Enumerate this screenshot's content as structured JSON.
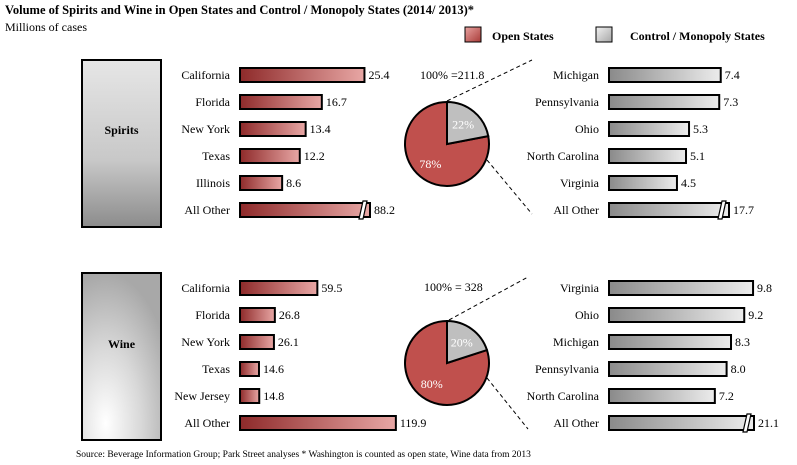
{
  "title": "Volume of Spirits and Wine in Open States and Control / Monopoly States (2014/ 2013)*",
  "subtitle": "Millions of cases",
  "source": "Source: Beverage Information Group; Park Street analyses * Washington is counted as open state, Wine data from 2013",
  "legend": [
    {
      "label": "Open States",
      "color": "#c0504d"
    },
    {
      "label": "Control / Monopoly States",
      "color": "#bfbfbf"
    }
  ],
  "colors": {
    "open": "#c0504d",
    "control": "#bfbfbf"
  },
  "chart_data": [
    {
      "type": "bar",
      "panel": "Spirits",
      "series": "Open States",
      "categories": [
        "California",
        "Florida",
        "New York",
        "Texas",
        "Illinois",
        "All Other"
      ],
      "values": [
        25.4,
        16.7,
        13.4,
        12.2,
        8.6,
        88.2
      ],
      "labels": [
        "25.4",
        "16.7",
        "13.4",
        "12.2",
        "8.6",
        "88.2"
      ],
      "axis_break_on": "All Other"
    },
    {
      "type": "pie",
      "panel": "Spirits",
      "total_label": "100% =211.8",
      "slices": [
        {
          "name": "Open States",
          "value": 78,
          "label": "78%"
        },
        {
          "name": "Control / Monopoly States",
          "value": 22,
          "label": "22%"
        }
      ]
    },
    {
      "type": "bar",
      "panel": "Spirits",
      "series": "Control / Monopoly States",
      "categories": [
        "Michigan",
        "Pennsylvania",
        "Ohio",
        "North Carolina",
        "Virginia",
        "All Other"
      ],
      "values": [
        7.4,
        7.3,
        5.3,
        5.1,
        4.5,
        17.7
      ],
      "labels": [
        "7.4",
        "7.3",
        "5.3",
        "5.1",
        "4.5",
        "17.7"
      ],
      "axis_break_on": "All Other"
    },
    {
      "type": "bar",
      "panel": "Wine",
      "series": "Open States",
      "categories": [
        "California",
        "Florida",
        "New York",
        "Texas",
        "New Jersey",
        "All Other"
      ],
      "values": [
        59.5,
        26.8,
        26.1,
        14.6,
        14.8,
        119.9
      ],
      "labels": [
        "59.5",
        "26.8",
        "26.1",
        "14.6",
        "14.8",
        "119.9"
      ]
    },
    {
      "type": "pie",
      "panel": "Wine",
      "total_label": "100% = 328",
      "slices": [
        {
          "name": "Open States",
          "value": 80,
          "label": "80%"
        },
        {
          "name": "Control / Monopoly States",
          "value": 20,
          "label": "20%"
        }
      ]
    },
    {
      "type": "bar",
      "panel": "Wine",
      "series": "Control / Monopoly States",
      "categories": [
        "Virginia",
        "Ohio",
        "Michigan",
        "Pennsylvania",
        "North Carolina",
        "All Other"
      ],
      "values": [
        9.8,
        9.2,
        8.3,
        8.0,
        7.2,
        21.1
      ],
      "labels": [
        "9.8",
        "9.2",
        "8.3",
        "8.0",
        "7.2",
        "21.1"
      ],
      "axis_break_on": "All Other"
    }
  ]
}
